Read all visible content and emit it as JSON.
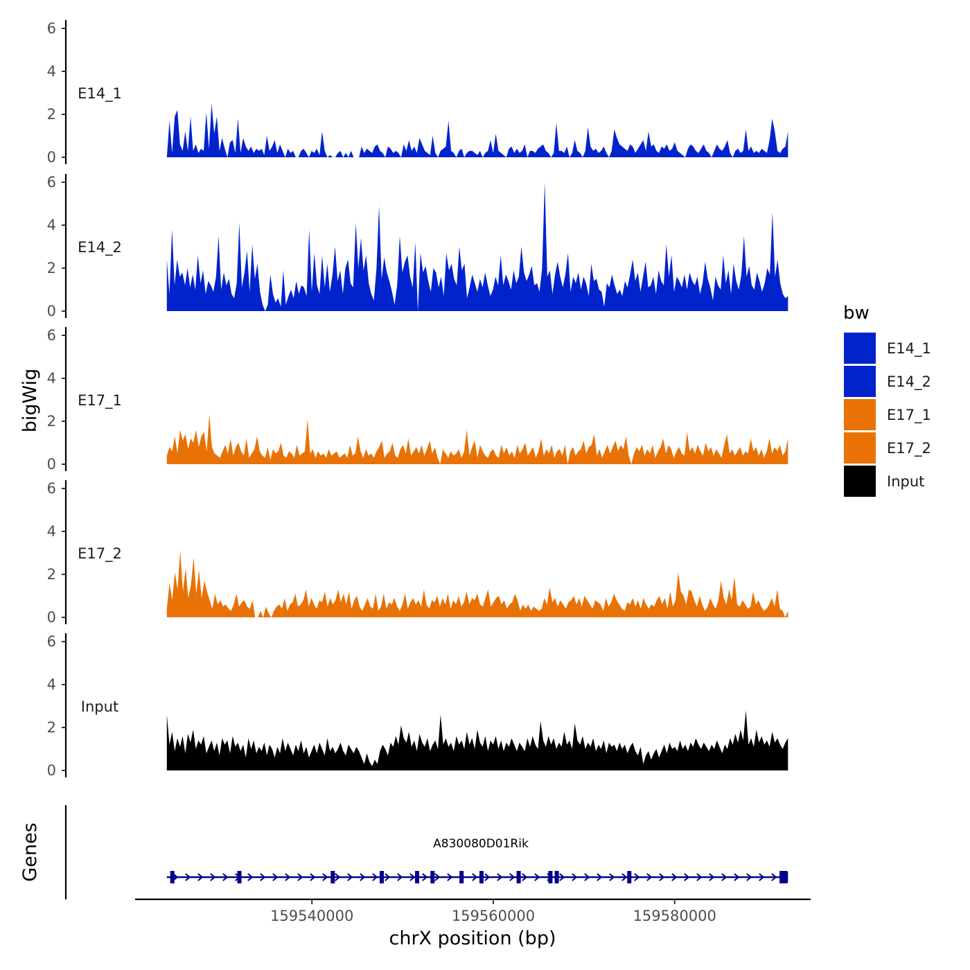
{
  "chart_data": {
    "type": "area",
    "ylabel": "bigWig",
    "xlabel": "chrX position (bp)",
    "genes_panel_label": "Genes",
    "ylim": [
      0,
      6
    ],
    "yticks": [
      0,
      2,
      4,
      6
    ],
    "xlim": [
      159520500,
      159595000
    ],
    "xticks": [
      159540000,
      159560000,
      159580000
    ],
    "xtick_labels": [
      "159540000",
      "159560000",
      "159580000"
    ],
    "x_start": 159524000,
    "x_end": 159592500,
    "legend": {
      "title": "bw",
      "entries": [
        {
          "label": "E14_1",
          "color": "#0023CC"
        },
        {
          "label": "E14_2",
          "color": "#0023CC"
        },
        {
          "label": "E17_1",
          "color": "#E87206"
        },
        {
          "label": "E17_2",
          "color": "#E87206"
        },
        {
          "label": "Input",
          "color": "#000000"
        }
      ]
    },
    "series": [
      {
        "name": "E14_1",
        "color": "#0023CC",
        "values": [
          0,
          1.7,
          0.2,
          1.9,
          2.2,
          0.6,
          0.3,
          1.2,
          0.3,
          1.9,
          0.3,
          0.6,
          0.2,
          0.4,
          0.3,
          2.1,
          0.4,
          2.5,
          1.1,
          1.9,
          0.3,
          0.9,
          0.4,
          0,
          0.7,
          0.8,
          0.2,
          1.8,
          0.2,
          0.9,
          0.5,
          0.3,
          0.5,
          0.2,
          0.4,
          0.3,
          0.4,
          0.1,
          1,
          0.3,
          0.5,
          0.8,
          0.2,
          0.6,
          0.3,
          0,
          0.4,
          0.2,
          0.3,
          0,
          0,
          0.3,
          0.4,
          0.2,
          0,
          0.3,
          0.2,
          0.4,
          0.1,
          1.2,
          0.3,
          0,
          0.1,
          0,
          0,
          0.2,
          0.3,
          0,
          0.2,
          0,
          0.3,
          0,
          0,
          0,
          0.5,
          0.2,
          0.4,
          0.3,
          0.2,
          0.5,
          0.6,
          0.3,
          0.2,
          0,
          0.5,
          0.4,
          0.2,
          0.3,
          0.2,
          0,
          0.6,
          0.3,
          0.8,
          0.3,
          0.5,
          0.2,
          0.9,
          0.6,
          0.3,
          0.2,
          0.1,
          1,
          0.2,
          0,
          0.3,
          0.4,
          0.5,
          1.7,
          0.3,
          0.2,
          0,
          0.3,
          0.4,
          0,
          0.2,
          0.3,
          0.3,
          0.2,
          0.1,
          0.3,
          0,
          0.2,
          0.3,
          0.8,
          0.2,
          1.1,
          0.3,
          0.2,
          0.1,
          0,
          0.4,
          0.5,
          0.2,
          0.4,
          0.2,
          0.3,
          0.6,
          0,
          0.3,
          0.3,
          0.2,
          0.4,
          0.5,
          0.6,
          0.3,
          0.2,
          0,
          0.2,
          1.6,
          0.3,
          0.3,
          0.2,
          0.5,
          0,
          0.2,
          0.8,
          0.3,
          0.2,
          0,
          0.3,
          1.4,
          0.5,
          0.3,
          0.4,
          0.2,
          0.3,
          0.5,
          0.2,
          0,
          0.3,
          1.3,
          0.9,
          0.6,
          0.5,
          0.4,
          0.3,
          0.6,
          0.5,
          0.2,
          0.4,
          0.6,
          0.8,
          0.3,
          1.2,
          0.5,
          0.6,
          0.3,
          0.2,
          0.5,
          0.4,
          0.6,
          0.3,
          0.4,
          0.7,
          0.3,
          0.2,
          0.1,
          0,
          0.4,
          0.6,
          0.5,
          0.3,
          0.2,
          0.4,
          0.6,
          0.3,
          0.2,
          0,
          0.3,
          0.6,
          0.4,
          0.3,
          0.5,
          0.8,
          0.2,
          0,
          0.3,
          0.4,
          0.2,
          0.3,
          1.3,
          0.3,
          0.5,
          0.2,
          0.3,
          0.2,
          0.4,
          0.3,
          0.2,
          0.8,
          1.8,
          1.2,
          0.3,
          0.2,
          0.4,
          0.5,
          1.2
        ]
      },
      {
        "name": "E14_2",
        "color": "#0023CC",
        "values": [
          2.4,
          0.8,
          3.8,
          1.2,
          2.4,
          1.6,
          1.8,
          1.2,
          2.0,
          1.1,
          1.7,
          1.0,
          2.6,
          1.3,
          1.9,
          0.8,
          1.4,
          1.2,
          0.9,
          1.6,
          3.5,
          1.0,
          1.8,
          1.2,
          1.5,
          0.8,
          0.6,
          1.3,
          4.1,
          1.1,
          1.8,
          2.8,
          0.9,
          3.1,
          1.5,
          2.2,
          0.9,
          0.3,
          0,
          0.3,
          1.7,
          0.8,
          0.4,
          0.6,
          0.2,
          1.9,
          0.3,
          0.7,
          1.0,
          0.6,
          1.4,
          0.8,
          1.2,
          1.1,
          0.7,
          3.8,
          0.9,
          2.7,
          1.2,
          0.8,
          2.6,
          1.1,
          2.2,
          0.9,
          1.7,
          3.0,
          1.4,
          1.9,
          0.8,
          2.0,
          2.4,
          1.3,
          1.1,
          4.1,
          2.0,
          3.4,
          1.9,
          2.6,
          1.3,
          0.8,
          0.5,
          2.0,
          4.9,
          1.5,
          2.5,
          1.8,
          1.4,
          0.9,
          0.3,
          1.2,
          3.5,
          1.8,
          2.3,
          2.6,
          1.6,
          1.1,
          3.2,
          0,
          2.7,
          1.8,
          2.1,
          1.4,
          0.9,
          2.0,
          1.8,
          1.1,
          1.6,
          0.7,
          2.7,
          1.9,
          2.2,
          1.5,
          1.2,
          3.0,
          1.9,
          2.2,
          0.6,
          1.1,
          1.7,
          1.3,
          0.9,
          1.5,
          1.1,
          1.8,
          1.2,
          0.7,
          1.0,
          1.6,
          1.2,
          2.6,
          1.2,
          1.7,
          1.4,
          1.0,
          1.9,
          1.3,
          1.6,
          3.0,
          1.8,
          1.4,
          1.7,
          2.1,
          1.2,
          1.3,
          0.9,
          2.0,
          6.0,
          1.6,
          1.9,
          0.8,
          1.7,
          2.3,
          1.6,
          1.1,
          1.7,
          2.7,
          0.9,
          1.6,
          1.3,
          1.8,
          1.0,
          1.6,
          1.3,
          0.7,
          2.2,
          1.4,
          1.5,
          1.0,
          0.9,
          0.2,
          1.3,
          1.1,
          1.7,
          1.2,
          0.8,
          1.0,
          0.7,
          1.4,
          1.1,
          1.7,
          2.4,
          1.4,
          1.8,
          0.9,
          1.6,
          2.3,
          1.1,
          1.2,
          1.6,
          0.8,
          1.9,
          1.4,
          1.2,
          3.1,
          1.6,
          2.6,
          0.9,
          1.6,
          1.4,
          1.1,
          1.7,
          1.0,
          1.8,
          1.4,
          1.2,
          1.6,
          0.8,
          1.3,
          2.3,
          1.5,
          1.1,
          0.5,
          1.6,
          1.2,
          1.0,
          2.6,
          1.3,
          1.9,
          0.8,
          2.2,
          1.4,
          1.0,
          1.7,
          3.5,
          1.6,
          2.1,
          1.2,
          1.0,
          1.8,
          1.4,
          0.9,
          1.3,
          2.0,
          1.7,
          4.6,
          1.6,
          2.4,
          1.3,
          0.8,
          0.6,
          0.7
        ]
      },
      {
        "name": "E17_1",
        "color": "#E87206",
        "values": [
          0.4,
          0.8,
          0.6,
          1.3,
          0.5,
          1.6,
          1.1,
          1.4,
          0.7,
          1.2,
          1.0,
          1.6,
          0.8,
          1.3,
          1.5,
          0.6,
          2.3,
          0.8,
          0.5,
          0.4,
          0.3,
          0.6,
          0.9,
          0.5,
          1.2,
          0.4,
          0.8,
          1.0,
          0.6,
          0.4,
          1.2,
          0.3,
          0.5,
          0.7,
          1.3,
          0.6,
          0.4,
          0.3,
          0.8,
          0.2,
          0.7,
          0.5,
          0.6,
          1.0,
          0.4,
          0.3,
          0.6,
          0.5,
          0.3,
          0.9,
          0.4,
          0.5,
          0.6,
          2.1,
          0.5,
          0.7,
          0.3,
          0.6,
          0.4,
          0.5,
          0.3,
          0.7,
          0.4,
          0.5,
          0.6,
          0.3,
          0.4,
          0.5,
          0.3,
          0.9,
          0.4,
          0.5,
          1.3,
          0.6,
          0.3,
          0.7,
          0.4,
          0.5,
          0.3,
          0.6,
          0.8,
          1.1,
          0.3,
          0.5,
          0.6,
          1.0,
          0.4,
          0.3,
          0.7,
          0.9,
          0.5,
          1.2,
          0.4,
          0.6,
          0.8,
          0.5,
          0.9,
          0.4,
          0.7,
          1.1,
          0.5,
          0.8,
          0.3,
          0,
          0.7,
          0.5,
          0.3,
          0.6,
          0.4,
          0.5,
          0.7,
          0.3,
          0.6,
          1.6,
          0.4,
          0.8,
          1.1,
          0.3,
          0.9,
          0.6,
          0.4,
          0.3,
          0.6,
          0.7,
          0.4,
          0.3,
          0.9,
          0.5,
          0.8,
          0.4,
          0.6,
          0.3,
          0.9,
          0.5,
          0.7,
          1.0,
          0.4,
          0.6,
          0.8,
          0.3,
          0.6,
          1.2,
          0.4,
          0.7,
          0.5,
          0.9,
          0.3,
          0.6,
          0.7,
          0.4,
          0.9,
          0,
          0.6,
          0.8,
          0.4,
          0.6,
          0.7,
          1.1,
          0.5,
          0.8,
          0.9,
          1.4,
          0.4,
          0.7,
          0.3,
          0.6,
          0.9,
          0.5,
          0.8,
          1.1,
          0.6,
          0.9,
          0.7,
          1.3,
          0.4,
          0,
          0.5,
          0.8,
          0.6,
          0.9,
          0.4,
          0.7,
          0.5,
          0.9,
          0.3,
          0.6,
          0.8,
          1.2,
          0.5,
          0.9,
          0.7,
          0.3,
          0.6,
          0.8,
          0.5,
          0.4,
          1.5,
          0.6,
          0.8,
          0.5,
          0.9,
          0.6,
          0.4,
          1.0,
          0.6,
          0.8,
          0.4,
          0.7,
          0.5,
          0.3,
          0.9,
          1.4,
          0.5,
          0.7,
          0.4,
          0.6,
          0.8,
          0.4,
          0.6,
          0.5,
          1.2,
          0.6,
          0.8,
          0.4,
          0.7,
          0.3,
          0.6,
          1.2,
          0.5,
          0.8,
          0.6,
          0.9,
          0.4,
          0.6,
          1.2
        ]
      },
      {
        "name": "E17_2",
        "color": "#E87206",
        "values": [
          0.4,
          1.6,
          0.8,
          2.1,
          1.3,
          3.1,
          1.2,
          2.3,
          0.9,
          1.5,
          2.8,
          1.1,
          2.2,
          0.9,
          1.7,
          1.2,
          0.8,
          0.4,
          1.1,
          0.6,
          0.8,
          0.5,
          0.6,
          0.4,
          0.3,
          0.6,
          1.1,
          0.5,
          0.7,
          0.8,
          0.5,
          0.4,
          0.8,
          0,
          0,
          0.3,
          0,
          0.5,
          0.2,
          0,
          0.3,
          0.5,
          0.6,
          0.4,
          0.9,
          0.3,
          0.6,
          0.7,
          1.1,
          0.5,
          0.6,
          0.8,
          1.3,
          0.5,
          0.9,
          0.6,
          0.4,
          0.8,
          0.7,
          1.2,
          0.5,
          0.9,
          0.6,
          0.8,
          1.3,
          0.7,
          1.1,
          0.6,
          1.2,
          0.4,
          0.8,
          1.0,
          0.5,
          0.3,
          0.6,
          0.9,
          0.5,
          0.4,
          1.1,
          0.3,
          0.5,
          1.1,
          0.4,
          0.7,
          0.6,
          0.9,
          0.5,
          0.3,
          0.6,
          1.1,
          0.4,
          0.7,
          0.9,
          0.6,
          0.8,
          0.5,
          1.3,
          0.6,
          0.4,
          0.8,
          0.7,
          1.0,
          0.5,
          0.9,
          0.6,
          1.1,
          0.4,
          0.8,
          0.6,
          1.0,
          0.5,
          0.7,
          1.2,
          0.6,
          0.9,
          0.8,
          1.1,
          0.6,
          0.5,
          0.9,
          1.3,
          0.5,
          0.7,
          0.9,
          1.0,
          0.6,
          0.8,
          0.4,
          0.6,
          0.7,
          1.1,
          0.8,
          0.3,
          0.6,
          0.4,
          0.6,
          0.3,
          0.5,
          0.4,
          0.3,
          0.4,
          0.9,
          0.6,
          1.4,
          0.7,
          0.9,
          0.5,
          0.8,
          0.6,
          0.4,
          0.7,
          0.8,
          1.0,
          0.6,
          0.9,
          0.5,
          1.0,
          0.8,
          0.6,
          0.4,
          0.8,
          0.7,
          0.6,
          0.3,
          0.9,
          0.5,
          0.7,
          1.1,
          0.8,
          0.6,
          0.4,
          0.3,
          0.7,
          0.6,
          0.9,
          0.5,
          0.8,
          0.4,
          0.9,
          0.6,
          0.4,
          0.6,
          0.5,
          0.8,
          1.0,
          0.6,
          0.9,
          0.4,
          1.2,
          0.5,
          0.8,
          2.1,
          1.2,
          1.0,
          0.6,
          1.3,
          1.2,
          0.8,
          0.5,
          1.0,
          0.6,
          0.3,
          0.5,
          0.9,
          0.6,
          0.4,
          0.8,
          1.7,
          0.9,
          0.6,
          1.3,
          0.8,
          1.9,
          0.6,
          0.5,
          0.8,
          0.6,
          0.4,
          0.5,
          1.2,
          0.6,
          0.8,
          0.5,
          0.3,
          0.4,
          0.6,
          0.9,
          0.5,
          1.3,
          0.4,
          0.3,
          0,
          0.3
        ]
      },
      {
        "name": "Input",
        "color": "#000000",
        "values": [
          2.6,
          1.2,
          1.8,
          0.9,
          1.5,
          1.1,
          1.6,
          0.8,
          1.7,
          1.3,
          1.9,
          1.0,
          1.4,
          1.2,
          1.6,
          0.8,
          1.1,
          1.4,
          0.9,
          1.3,
          0.7,
          1.5,
          1.2,
          1.4,
          0.8,
          1.6,
          1.1,
          1.3,
          0.9,
          1.2,
          0.6,
          1.5,
          1.0,
          1.4,
          0.8,
          1.1,
          0.9,
          1.3,
          0.7,
          1.2,
          1.0,
          0.6,
          1.1,
          0.8,
          1.5,
          0.9,
          1.3,
          1.0,
          0.7,
          1.2,
          0.9,
          1.4,
          0.8,
          1.1,
          0.6,
          0.9,
          1.2,
          0.8,
          1.3,
          1.0,
          0.7,
          1.5,
          0.9,
          1.1,
          0.8,
          1.0,
          1.3,
          0.9,
          0.7,
          1.2,
          1.0,
          0.8,
          1.1,
          0.9,
          0.6,
          0.3,
          0.8,
          0.4,
          0.2,
          0.5,
          0.3,
          0.9,
          1.2,
          1.0,
          0.7,
          1.3,
          1.1,
          1.6,
          1.2,
          2.1,
          1.5,
          1.3,
          1.8,
          1.1,
          1.4,
          0.9,
          1.7,
          1.3,
          1.1,
          1.5,
          0.9,
          1.2,
          1.4,
          1.0,
          2.6,
          1.2,
          1.5,
          1.1,
          1.3,
          0.9,
          1.6,
          1.2,
          1.4,
          1.0,
          1.8,
          1.2,
          1.5,
          1.0,
          1.9,
          1.3,
          1.1,
          1.6,
          0.9,
          1.4,
          1.2,
          1.6,
          1.0,
          1.4,
          0.9,
          1.3,
          1.1,
          1.5,
          1.2,
          0.9,
          1.3,
          1.1,
          0.9,
          1.5,
          1.1,
          1.6,
          1.2,
          1.0,
          2.3,
          1.4,
          1.1,
          1.6,
          1.2,
          1.5,
          1.0,
          1.3,
          1.1,
          1.8,
          1.2,
          1.4,
          1.0,
          2.2,
          1.4,
          1.2,
          1.6,
          1.0,
          1.3,
          1.1,
          1.5,
          0.9,
          1.2,
          1.0,
          1.4,
          0.8,
          1.3,
          1.1,
          1.2,
          0.9,
          1.3,
          1.0,
          1.2,
          0.8,
          1.1,
          1.3,
          0.9,
          0.7,
          1.1,
          0.3,
          0.7,
          0.9,
          0.5,
          0.8,
          1.0,
          0.6,
          0.9,
          1.2,
          0.8,
          1.3,
          1.0,
          1.1,
          0.9,
          1.4,
          1.0,
          1.2,
          0.9,
          1.3,
          1.1,
          1.5,
          1.2,
          1.0,
          1.3,
          1.1,
          0.9,
          1.2,
          1.0,
          1.4,
          1.1,
          0.8,
          1.2,
          1.0,
          1.5,
          1.2,
          1.7,
          1.3,
          1.9,
          1.4,
          2.8,
          1.2,
          1.5,
          1.1,
          1.9,
          1.3,
          1.6,
          1.2,
          1.4,
          1.1,
          1.8,
          1.3,
          1.5,
          1.2,
          1.0,
          1.3,
          1.5
        ]
      }
    ],
    "gene": {
      "name": "A830080D01Rik",
      "start": 159524000,
      "end": 159592500,
      "strand": "+",
      "color": "#00008B",
      "exons": [
        159524600,
        159532000,
        159542300,
        159547700,
        159551600,
        159553300,
        159556500,
        159558700,
        159562800,
        159566300,
        159567000,
        159575000,
        159591800,
        159592200
      ]
    }
  }
}
